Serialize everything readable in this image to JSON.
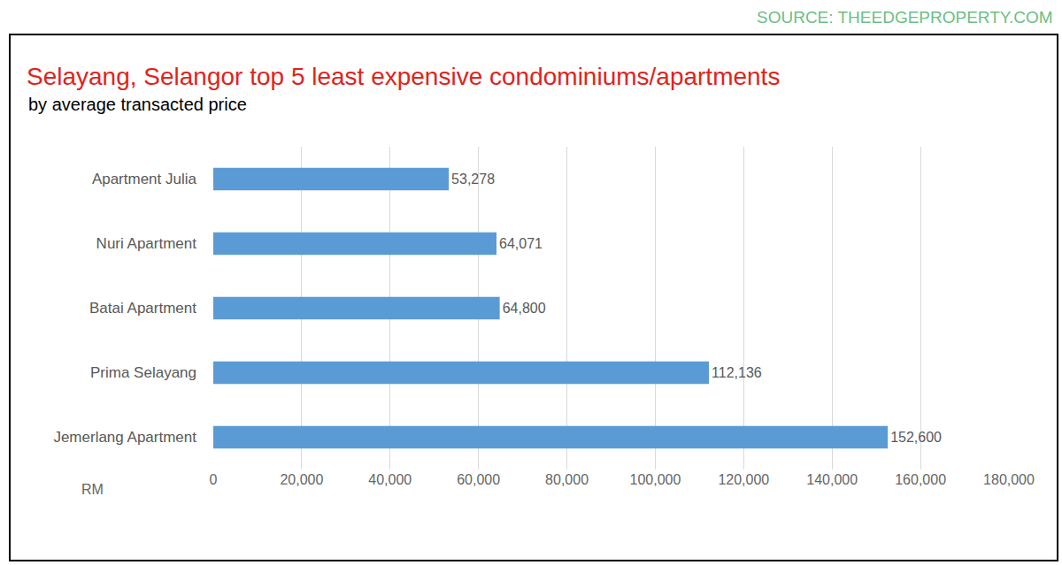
{
  "chart_data": {
    "type": "bar",
    "orientation": "horizontal",
    "title": "Selayang, Selangor top 5 least expensive condominiums/apartments",
    "subtitle": "by average transacted price",
    "source": "SOURCE: THEEDGEPROPERTY.COM",
    "xlabel": "RM",
    "categories": [
      "Apartment Julia",
      "Nuri Apartment",
      "Batai Apartment",
      "Prima Selayang",
      "Jemerlang Apartment"
    ],
    "values": [
      53278,
      64071,
      64800,
      112136,
      152600
    ],
    "value_labels": [
      "53,278",
      "64,071",
      "64,800",
      "112,136",
      "152,600"
    ],
    "data_labels": true,
    "color": "#5b9bd5",
    "xlim": [
      0,
      180000
    ],
    "xticks": [
      0,
      {
        "value": 20000,
        "label": "20,000"
      },
      {
        "value": 40000,
        "label": "40,000"
      },
      {
        "value": 60000,
        "label": "60,000"
      },
      {
        "value": 80000,
        "label": "80,000"
      },
      {
        "value": 100000,
        "label": "100,000"
      },
      {
        "value": 120000,
        "label": "120,000"
      },
      {
        "value": 140000,
        "label": "140,000"
      },
      {
        "value": 160000,
        "label": "160,000"
      },
      {
        "value": 180000,
        "label": "180,000"
      }
    ],
    "grid": true
  }
}
